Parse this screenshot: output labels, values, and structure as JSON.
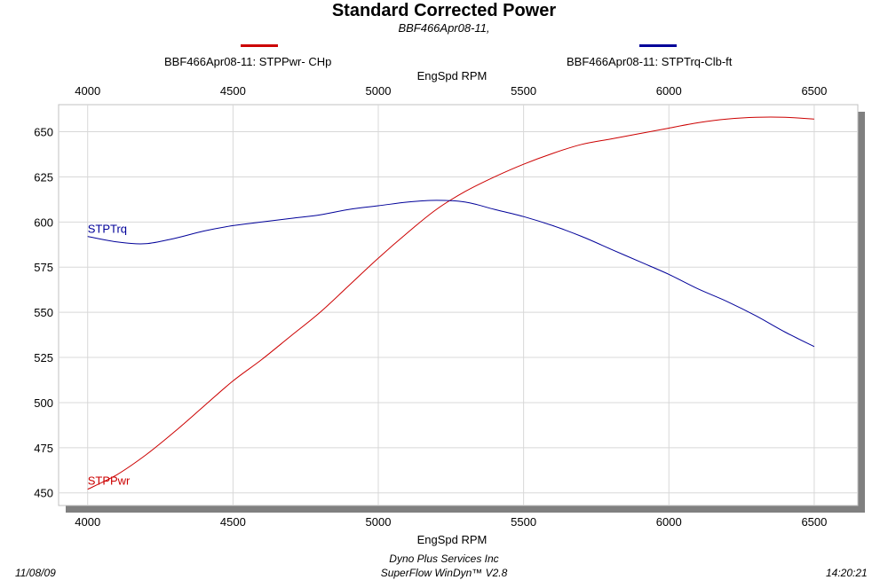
{
  "chart_data": {
    "type": "line",
    "title": "Standard Corrected Power",
    "subtitle": "BBF466Apr08-11,",
    "xlabel": "EngSpd  RPM",
    "xlim": [
      3900,
      6650
    ],
    "ylim": [
      443,
      665
    ],
    "x_ticks": [
      4000,
      4500,
      5000,
      5500,
      6000,
      6500
    ],
    "y_ticks": [
      450,
      475,
      500,
      525,
      550,
      575,
      600,
      625,
      650
    ],
    "grid": true,
    "legend_position": "top",
    "series": [
      {
        "name": "BBF466Apr08-11: STPPwr- CHp",
        "label": "STPPwr",
        "color": "#cc0000",
        "x": [
          4000,
          4100,
          4200,
          4300,
          4400,
          4500,
          4600,
          4700,
          4800,
          4900,
          5000,
          5100,
          5200,
          5300,
          5400,
          5500,
          5600,
          5700,
          5800,
          5900,
          6000,
          6100,
          6200,
          6300,
          6400,
          6500
        ],
        "y": [
          452,
          460,
          471,
          484,
          498,
          512,
          524,
          537,
          550,
          565,
          580,
          594,
          607,
          617,
          625,
          632,
          638,
          643,
          646,
          649,
          652,
          655,
          657,
          658,
          658,
          657
        ]
      },
      {
        "name": "BBF466Apr08-11: STPTrq-Clb-ft",
        "label": "STPTrq",
        "color": "#000099",
        "x": [
          4000,
          4100,
          4200,
          4300,
          4400,
          4500,
          4600,
          4700,
          4800,
          4900,
          5000,
          5100,
          5200,
          5300,
          5400,
          5500,
          5600,
          5700,
          5800,
          5900,
          6000,
          6100,
          6200,
          6300,
          6400,
          6500
        ],
        "y": [
          592,
          589,
          588,
          591,
          595,
          598,
          600,
          602,
          604,
          607,
          609,
          611,
          612,
          611,
          607,
          603,
          598,
          592,
          585,
          578,
          571,
          563,
          556,
          548,
          539,
          531
        ]
      }
    ]
  },
  "footer": {
    "date": "11/08/09",
    "company": "Dyno Plus Services Inc",
    "software": "SuperFlow WinDyn™ V2.8",
    "time": "14:20:21"
  }
}
